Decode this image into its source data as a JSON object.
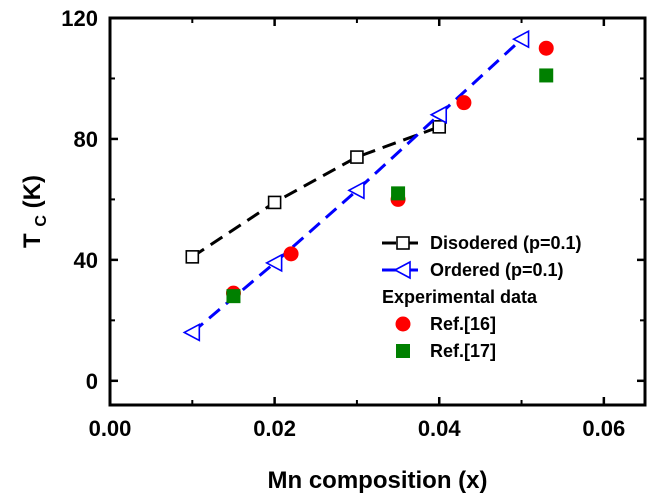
{
  "chart_data": {
    "type": "scatter",
    "xlabel": "Mn composition (x)",
    "ylabel": {
      "main": "T",
      "subscript": "C",
      "suffix": "(K)"
    },
    "xlim": [
      0.0,
      0.065
    ],
    "ylim": [
      -8,
      120
    ],
    "xticks": [
      0.0,
      0.02,
      0.04,
      0.06
    ],
    "xtick_labels": [
      "0.00",
      "0.02",
      "0.04",
      "0.06"
    ],
    "yticks": [
      0,
      40,
      80,
      120
    ],
    "ytick_labels": [
      "0",
      "40",
      "80",
      "120"
    ],
    "grid": false,
    "legend_position": "bottom-right",
    "series": [
      {
        "name": "Disodered (p=0.1)",
        "kind": "line+marker",
        "marker": "square-open",
        "line_style": "dashed",
        "color": "#000000",
        "x": [
          0.01,
          0.02,
          0.03,
          0.04
        ],
        "y": [
          41,
          59,
          74,
          84
        ]
      },
      {
        "name": "Ordered (p=0.1)",
        "kind": "line+marker",
        "marker": "triangle-left-open",
        "line_style": "dashed",
        "color": "#0000ff",
        "x": [
          0.01,
          0.02,
          0.03,
          0.04,
          0.05
        ],
        "y": [
          16,
          39,
          63,
          88,
          113
        ]
      },
      {
        "name": "Ref.[16]",
        "kind": "marker",
        "marker": "circle-filled",
        "color": "#ff0000",
        "x": [
          0.015,
          0.022,
          0.035,
          0.043,
          0.053
        ],
        "y": [
          29,
          42,
          60,
          92,
          110
        ]
      },
      {
        "name": "Ref.[17]",
        "kind": "marker",
        "marker": "square-filled",
        "color": "#008000",
        "x": [
          0.015,
          0.035,
          0.053
        ],
        "y": [
          28,
          62,
          101
        ]
      }
    ],
    "legend_heading": "Experimental data"
  }
}
